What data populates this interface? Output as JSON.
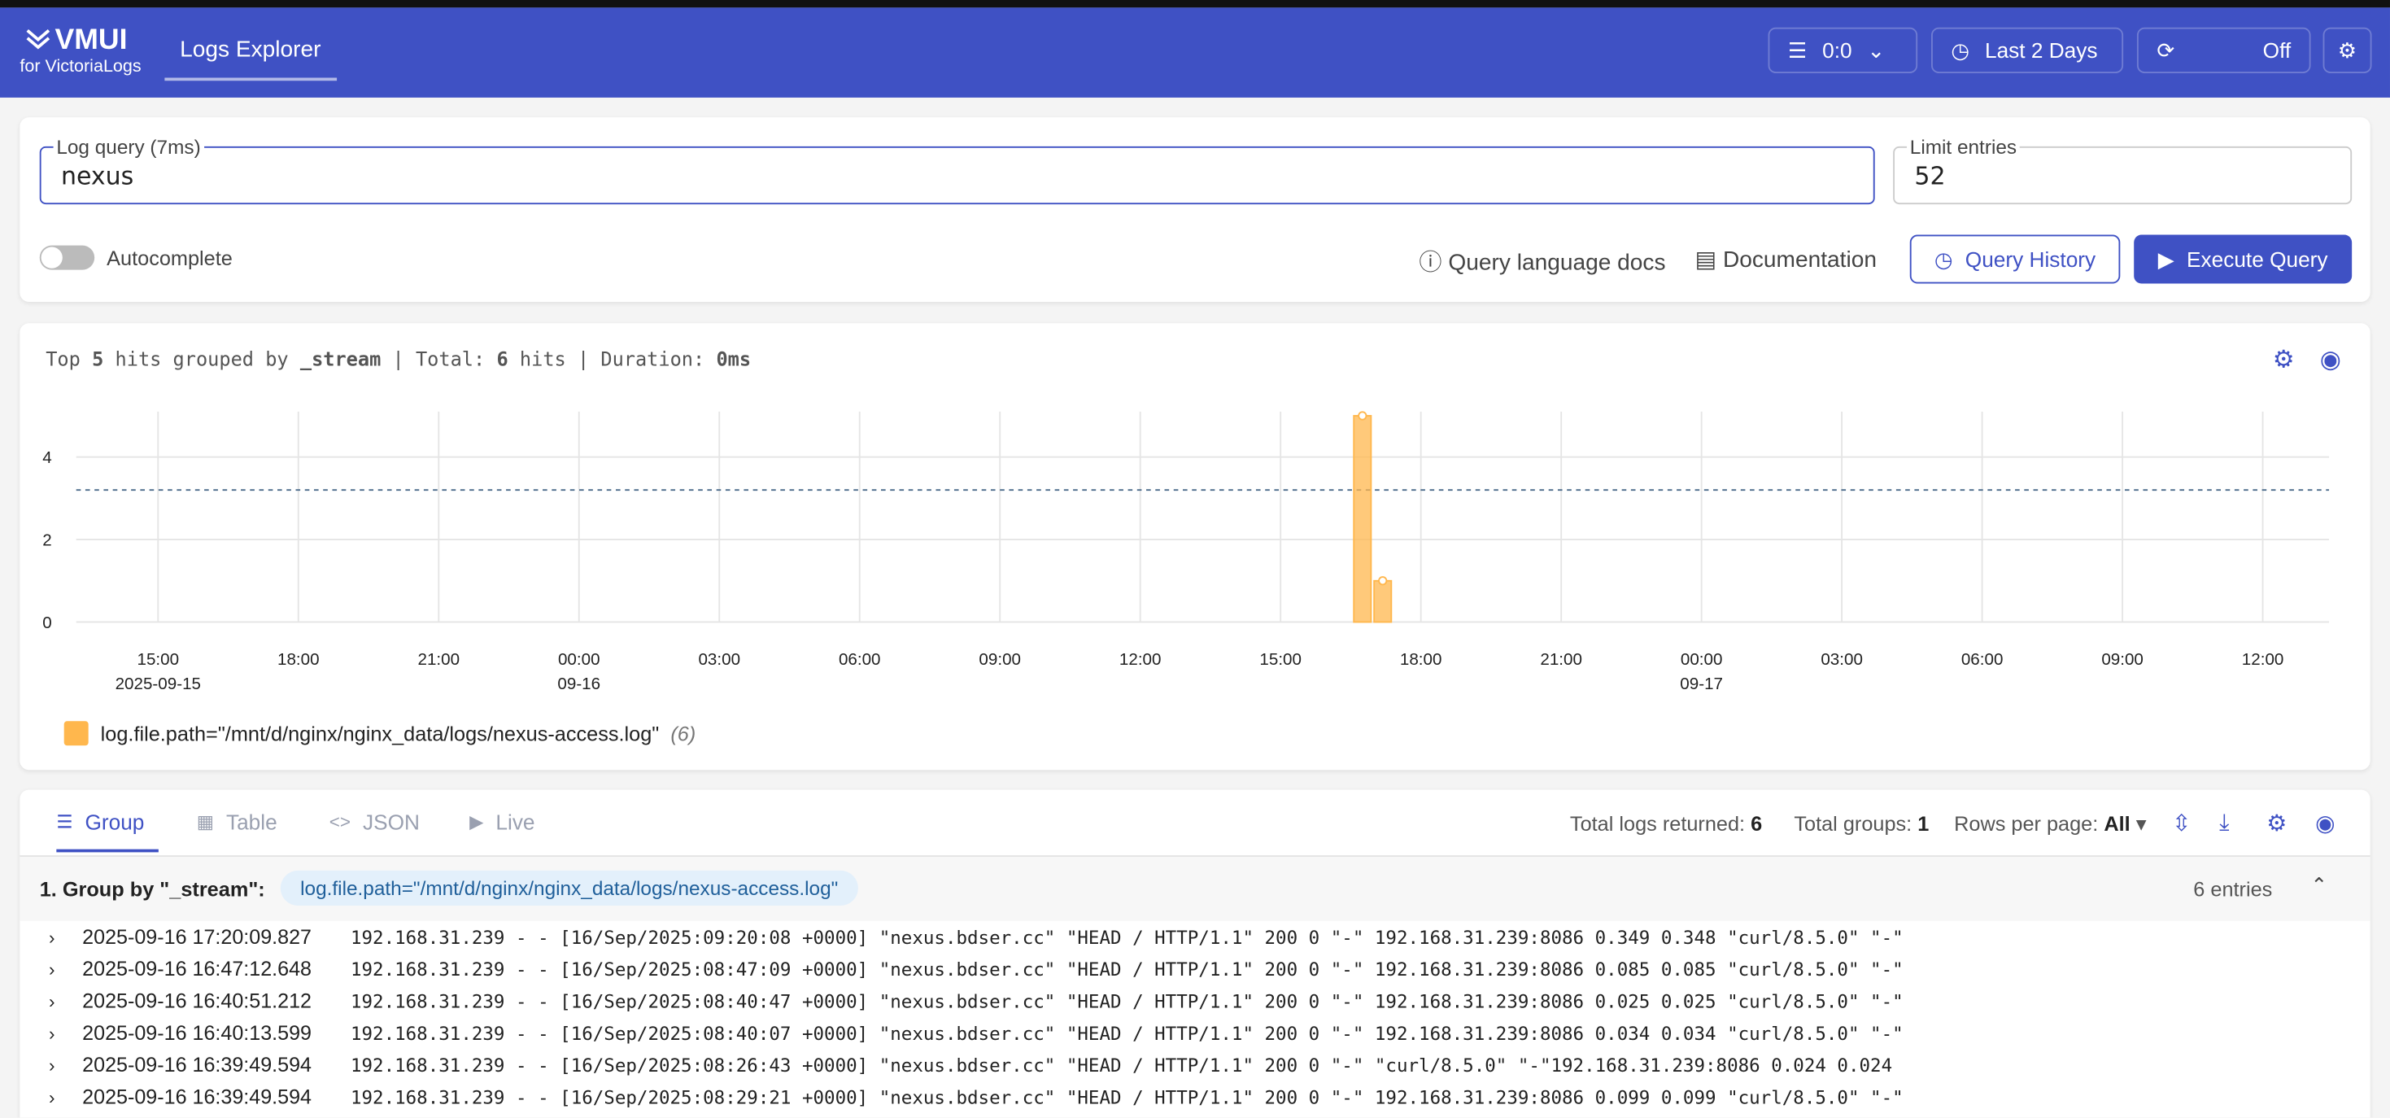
{
  "header": {
    "logo": "VMUI",
    "logo_sub": "for VictoriaLogs",
    "tab": "Logs Explorer",
    "tenant": "0:0",
    "time_range": "Last 2 Days",
    "refresh": "Off"
  },
  "query": {
    "label": "Log query (7ms)",
    "value": "nexus",
    "limit_label": "Limit entries",
    "limit": "52",
    "autocomplete": "Autocomplete",
    "docs": "Query language docs",
    "documentation": "Documentation",
    "history": "Query History",
    "execute": "Execute Query"
  },
  "stats": {
    "top_prefix": "Top",
    "top": "5",
    "grouped": "hits grouped by",
    "field": "_stream",
    "total_prefix": "| Total:",
    "total": "6",
    "hits": "hits | Duration:",
    "duration": "0ms"
  },
  "chart_data": {
    "type": "histogram",
    "bins": [
      "2025-09-16 16:32",
      "2025-09-16 16:58",
      "2025-09-16 17:24"
    ],
    "series": [
      {
        "name": "log.file.path=\"/mnt/d/nginx/nginx_data/logs/nexus-access.log\"",
        "count_label": "(6)",
        "color": "#ffb74d",
        "values": [
          5,
          1
        ]
      }
    ],
    "xlim": [
      "2025-09-15 13:15",
      "2025-09-17 13:25"
    ],
    "xticks": [
      {
        "value": "2025-09-15 15:00",
        "label": "15:00"
      },
      {
        "value": "2025-09-15 18:00",
        "label": "18:00"
      },
      {
        "value": "2025-09-15 21:00",
        "label": "21:00"
      },
      {
        "value": "2025-09-16 00:00",
        "label": "00:00"
      },
      {
        "value": "2025-09-16 03:00",
        "label": "03:00"
      },
      {
        "value": "2025-09-16 06:00",
        "label": "06:00"
      },
      {
        "value": "2025-09-16 09:00",
        "label": "09:00"
      },
      {
        "value": "2025-09-16 12:00",
        "label": "12:00"
      },
      {
        "value": "2025-09-16 15:00",
        "label": "15:00"
      },
      {
        "value": "2025-09-16 18:00",
        "label": "18:00"
      },
      {
        "value": "2025-09-16 21:00",
        "label": "21:00"
      },
      {
        "value": "2025-09-17 00:00",
        "label": "00:00"
      },
      {
        "value": "2025-09-17 03:00",
        "label": "03:00"
      },
      {
        "value": "2025-09-17 06:00",
        "label": "06:00"
      },
      {
        "value": "2025-09-17 09:00",
        "label": "09:00"
      },
      {
        "value": "2025-09-17 12:00",
        "label": "12:00"
      }
    ],
    "xtick_dates": [
      {
        "value": "2025-09-15 15:00",
        "label": "2025-09-15"
      },
      {
        "value": "2025-09-16 00:00",
        "label": "09-16"
      },
      {
        "value": "2025-09-17 00:00",
        "label": "09-17"
      }
    ],
    "ylim": [
      0,
      5.1
    ],
    "yticks": [
      0,
      2,
      4
    ],
    "grid": true,
    "ref_line": 3.2
  },
  "results": {
    "tabs": [
      "Group",
      "Table",
      "JSON",
      "Live"
    ],
    "logs_returned_label": "Total logs returned:",
    "logs_returned": "6",
    "groups_label": "Total groups:",
    "groups": "1",
    "rows_label": "Rows per page:",
    "rows": "All",
    "group_title": "1. Group by \"_stream\":",
    "group_value": "log.file.path=\"/mnt/d/nginx/nginx_data/logs/nexus-access.log\"",
    "entries": "6 entries",
    "rows_list": [
      {
        "time": "2025-09-16 17:20:09.827",
        "message": "192.168.31.239 - - [16/Sep/2025:09:20:08 +0000] \"nexus.bdser.cc\" \"HEAD / HTTP/1.1\" 200 0 \"-\" 192.168.31.239:8086 0.349 0.348 \"curl/8.5.0\" \"-\""
      },
      {
        "time": "2025-09-16 16:47:12.648",
        "message": "192.168.31.239 - - [16/Sep/2025:08:47:09 +0000] \"nexus.bdser.cc\" \"HEAD / HTTP/1.1\" 200 0 \"-\" 192.168.31.239:8086 0.085 0.085 \"curl/8.5.0\" \"-\""
      },
      {
        "time": "2025-09-16 16:40:51.212",
        "message": "192.168.31.239 - - [16/Sep/2025:08:40:47 +0000] \"nexus.bdser.cc\" \"HEAD / HTTP/1.1\" 200 0 \"-\" 192.168.31.239:8086 0.025 0.025 \"curl/8.5.0\" \"-\""
      },
      {
        "time": "2025-09-16 16:40:13.599",
        "message": "192.168.31.239 - - [16/Sep/2025:08:40:07 +0000] \"nexus.bdser.cc\" \"HEAD / HTTP/1.1\" 200 0 \"-\" 192.168.31.239:8086 0.034 0.034 \"curl/8.5.0\" \"-\""
      },
      {
        "time": "2025-09-16 16:39:49.594",
        "message": "192.168.31.239 - - [16/Sep/2025:08:26:43 +0000] \"nexus.bdser.cc\" \"HEAD / HTTP/1.1\" 200 0 \"-\" \"curl/8.5.0\" \"-\"192.168.31.239:8086 0.024 0.024"
      },
      {
        "time": "2025-09-16 16:39:49.594",
        "message": "192.168.31.239 - - [16/Sep/2025:08:29:21 +0000] \"nexus.bdser.cc\" \"HEAD / HTTP/1.1\" 200 0 \"-\" 192.168.31.239:8086 0.099 0.099 \"curl/8.5.0\" \"-\""
      }
    ]
  }
}
